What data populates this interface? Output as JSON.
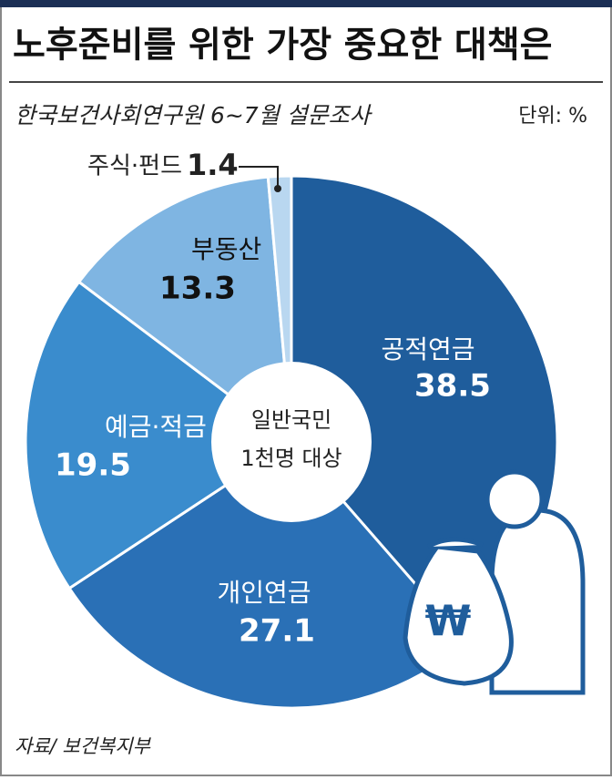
{
  "chart_data": {
    "type": "donut",
    "title": "노후준비를 위한 가장 중요한 대책은",
    "subtitle": "한국보건사회연구원 6~7월 설문조사",
    "unit": "단위: %",
    "center_label": [
      "일반국민",
      "1천명 대상"
    ],
    "source": "자료/ 보건복지부",
    "categories": [
      "공적연금",
      "개인연금",
      "예금·적금",
      "부동산",
      "주식·펀드"
    ],
    "values": [
      38.5,
      27.1,
      19.5,
      13.3,
      1.4
    ],
    "colors": [
      "#1f5d9c",
      "#2a70b6",
      "#3a8ccd",
      "#7fb5e2",
      "#b9d7f0"
    ]
  }
}
